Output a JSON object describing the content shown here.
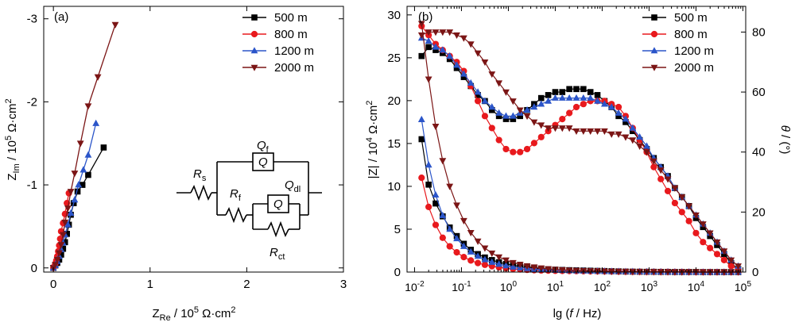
{
  "figure": {
    "panel_a_tag": "(a)",
    "panel_b_tag": "(b)"
  },
  "colors": {
    "500 m": "#000000",
    "800 m": "#e8191d",
    "1200 m": "#2b55c9",
    "2000 m": "#7b1515"
  },
  "circuit": {
    "Rs": "R",
    "Rs_sub": "s",
    "Qf": "Q",
    "Qf_sub": "f",
    "Qdl": "Q",
    "Qdl_sub": "dl",
    "Rf": "R",
    "Rf_sub": "f",
    "Rct": "R",
    "Rct_sub": "ct",
    "box_label": "Q"
  },
  "chart_data": [
    {
      "type": "line",
      "panel": "(a)",
      "xlabel": "Z_Re / 10^5 Ω·cm^2",
      "ylabel": "Z_Im / 10^5 Ω·cm^2",
      "xlim": [
        -0.1,
        3.0
      ],
      "ylim": [
        0.05,
        -3.15
      ],
      "xticks": [
        0,
        1,
        2,
        3
      ],
      "yticks": [
        0,
        -1,
        -2,
        -3
      ],
      "legend_position": "top-right",
      "series": [
        {
          "name": "500 m",
          "marker": "square",
          "x": [
            0.0,
            0.02,
            0.04,
            0.06,
            0.08,
            0.1,
            0.12,
            0.14,
            0.16,
            0.18,
            0.21,
            0.25,
            0.3,
            0.36,
            0.52
          ],
          "y": [
            0.0,
            -0.03,
            -0.06,
            -0.1,
            -0.16,
            -0.23,
            -0.31,
            -0.41,
            -0.52,
            -0.64,
            -0.78,
            -0.92,
            -1.0,
            -1.12,
            -1.45
          ]
        },
        {
          "name": "800 m",
          "marker": "circle",
          "x": [
            0.0,
            0.01,
            0.02,
            0.03,
            0.04,
            0.05,
            0.06,
            0.07,
            0.08,
            0.1,
            0.12,
            0.14,
            0.16
          ],
          "y": [
            0.0,
            -0.02,
            -0.05,
            -0.09,
            -0.14,
            -0.2,
            -0.27,
            -0.35,
            -0.44,
            -0.54,
            -0.65,
            -0.78,
            -0.9
          ]
        },
        {
          "name": "1200 m",
          "marker": "triangle-up",
          "x": [
            0.0,
            0.02,
            0.04,
            0.06,
            0.08,
            0.1,
            0.12,
            0.15,
            0.18,
            0.22,
            0.26,
            0.31,
            0.36,
            0.44
          ],
          "y": [
            0.0,
            -0.03,
            -0.08,
            -0.14,
            -0.22,
            -0.3,
            -0.4,
            -0.52,
            -0.66,
            -0.82,
            -1.0,
            -1.18,
            -1.36,
            -1.74
          ]
        },
        {
          "name": "2000 m",
          "marker": "triangle-down",
          "x": [
            0.0,
            0.02,
            0.04,
            0.06,
            0.08,
            0.1,
            0.12,
            0.15,
            0.18,
            0.22,
            0.28,
            0.36,
            0.46,
            0.64
          ],
          "y": [
            0.0,
            -0.04,
            -0.1,
            -0.18,
            -0.28,
            -0.4,
            -0.55,
            -0.72,
            -0.92,
            -1.14,
            -1.5,
            -1.95,
            -2.3,
            -2.93
          ]
        }
      ]
    },
    {
      "type": "line",
      "panel": "(b)",
      "xlabel": "lg (f / Hz)",
      "ylabel": "|Z| / 10^4 Ω·cm^2",
      "y2label": "θ / (°)",
      "x_scale": "log",
      "xlim": [
        0.01,
        100000
      ],
      "ylim": [
        0,
        31
      ],
      "y2lim": [
        0,
        88.57
      ],
      "xticks": [
        0.01,
        0.1,
        1,
        10,
        100,
        1000,
        10000,
        100000
      ],
      "xtick_labels": [
        "10^-2",
        "10^-1",
        "10^0",
        "10^1",
        "10^2",
        "10^3",
        "10^4",
        "10^5"
      ],
      "yticks": [
        0,
        5,
        10,
        15,
        20,
        25,
        30
      ],
      "y2ticks": [
        0,
        20,
        40,
        60,
        80
      ],
      "legend_position": "top-right",
      "lgf": [
        -1.85,
        -1.7,
        -1.55,
        -1.4,
        -1.25,
        -1.1,
        -0.95,
        -0.8,
        -0.65,
        -0.5,
        -0.35,
        -0.2,
        -0.05,
        0.1,
        0.25,
        0.4,
        0.55,
        0.7,
        0.85,
        1.0,
        1.15,
        1.3,
        1.45,
        1.6,
        1.75,
        1.9,
        2.05,
        2.2,
        2.35,
        2.5,
        2.65,
        2.8,
        2.95,
        3.1,
        3.25,
        3.4,
        3.55,
        3.7,
        3.85,
        4.0,
        4.15,
        4.3,
        4.45,
        4.6,
        4.75,
        4.9
      ],
      "series": [
        {
          "name": "500 m",
          "marker": "square",
          "impedance": [
            15.5,
            10.2,
            8.0,
            6.5,
            5.2,
            4.2,
            3.3,
            2.6,
            2.1,
            1.7,
            1.4,
            1.15,
            0.95,
            0.8,
            0.65,
            0.55,
            0.45,
            0.38,
            0.32,
            0.28,
            0.25,
            0.22,
            0.2,
            0.18,
            0.16,
            0.14,
            0.12,
            0.1,
            0.08,
            0.06,
            0.05,
            0.04,
            0.03,
            0.03,
            0.02,
            0.02,
            0.01,
            0.01,
            0.01,
            0.01,
            0.0,
            0.0,
            0.0,
            0.0,
            0.0,
            0.0
          ],
          "phase": [
            72,
            75,
            74,
            73,
            71,
            68,
            65,
            62,
            59,
            57,
            54,
            52,
            51,
            51,
            52,
            54,
            56,
            58,
            59,
            60,
            60,
            61,
            61,
            61,
            60,
            59,
            57,
            55,
            52,
            50,
            47,
            44,
            41,
            38,
            35,
            32,
            28,
            25,
            22,
            18,
            15,
            12,
            9,
            6,
            3,
            1
          ]
        },
        {
          "name": "800 m",
          "marker": "circle",
          "impedance": [
            11.0,
            7.6,
            5.5,
            4.0,
            3.0,
            2.3,
            1.75,
            1.35,
            1.05,
            0.85,
            0.68,
            0.55,
            0.45,
            0.37,
            0.31,
            0.26,
            0.22,
            0.19,
            0.17,
            0.15,
            0.14,
            0.13,
            0.12,
            0.11,
            0.1,
            0.09,
            0.08,
            0.07,
            0.06,
            0.05,
            0.04,
            0.04,
            0.03,
            0.03,
            0.02,
            0.02,
            0.01,
            0.01,
            0.01,
            0.0,
            0.0,
            0.0,
            0.0,
            0.0,
            0.0,
            0.0
          ],
          "phase": [
            82,
            79,
            76,
            74,
            72,
            70,
            67,
            62,
            57,
            52,
            48,
            44,
            41,
            40,
            40,
            41,
            43,
            45,
            47,
            49,
            51,
            53,
            55,
            56,
            57,
            57,
            57,
            56,
            55,
            52,
            48,
            44,
            40,
            35,
            31,
            27,
            23,
            20,
            17,
            13,
            10,
            8,
            6,
            4,
            2,
            1
          ]
        },
        {
          "name": "1200 m",
          "marker": "triangle-up",
          "impedance": [
            17.8,
            12.5,
            9.0,
            6.6,
            5.0,
            3.9,
            3.0,
            2.35,
            1.85,
            1.45,
            1.15,
            0.92,
            0.75,
            0.6,
            0.5,
            0.42,
            0.35,
            0.3,
            0.26,
            0.22,
            0.2,
            0.18,
            0.16,
            0.14,
            0.12,
            0.11,
            0.1,
            0.09,
            0.08,
            0.07,
            0.06,
            0.05,
            0.04,
            0.03,
            0.03,
            0.02,
            0.02,
            0.01,
            0.01,
            0.01,
            0.0,
            0.0,
            0.0,
            0.0,
            0.0,
            0.0
          ],
          "phase": [
            78,
            77,
            75,
            74,
            72,
            69,
            66,
            63,
            60,
            57,
            55,
            53,
            52,
            52,
            53,
            54,
            55,
            56,
            57,
            58,
            58,
            58,
            58,
            58,
            58,
            57,
            56,
            55,
            53,
            51,
            48,
            45,
            42,
            38,
            35,
            32,
            28,
            25,
            22,
            19,
            16,
            13,
            10,
            7,
            4,
            2
          ]
        },
        {
          "name": "2000 m",
          "marker": "triangle-down",
          "impedance": [
            29.0,
            22.5,
            17.0,
            13.0,
            10.0,
            7.8,
            6.0,
            4.6,
            3.6,
            2.8,
            2.2,
            1.75,
            1.4,
            1.1,
            0.9,
            0.72,
            0.58,
            0.47,
            0.38,
            0.31,
            0.26,
            0.22,
            0.18,
            0.15,
            0.12,
            0.1,
            0.08,
            0.07,
            0.06,
            0.05,
            0.04,
            0.04,
            0.03,
            0.03,
            0.02,
            0.02,
            0.01,
            0.01,
            0.01,
            0.01,
            0.0,
            0.0,
            0.0,
            0.0,
            0.0,
            0.0
          ],
          "phase": [
            79,
            80,
            80,
            80,
            80,
            79,
            78,
            76,
            73,
            70,
            66,
            63,
            60,
            57,
            54,
            52,
            50,
            49,
            48,
            48,
            48,
            48,
            47,
            47,
            47,
            47,
            47,
            46,
            46,
            45,
            44,
            42,
            40,
            37,
            34,
            31,
            28,
            25,
            22,
            19,
            16,
            13,
            10,
            7,
            4,
            2
          ]
        }
      ]
    }
  ]
}
